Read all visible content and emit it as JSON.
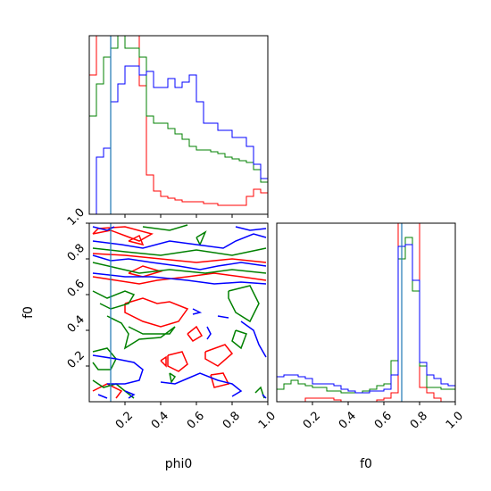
{
  "chart_data": {
    "type": "corner",
    "parameters": [
      "phi0",
      "f0"
    ],
    "xlabel": "phi0",
    "ylabel": "f0",
    "f0_xlabel": "f0",
    "xlim": [
      0,
      1
    ],
    "ylim": [
      0,
      1
    ],
    "ticks": [
      "0.2",
      "0.4",
      "0.6",
      "0.8",
      "1.0"
    ],
    "tick_values": [
      0.2,
      0.4,
      0.6,
      0.8,
      1.0
    ],
    "colors": {
      "red": "#ff0000",
      "green": "#008000",
      "blue": "#0000ff",
      "truth": "#1f77b4"
    },
    "truth": {
      "phi0": 0.12,
      "f0": 0.7
    },
    "histograms": {
      "bin_edges": [
        0,
        0.04,
        0.08,
        0.12,
        0.16,
        0.2,
        0.24,
        0.28,
        0.32,
        0.36,
        0.4,
        0.44,
        0.48,
        0.52,
        0.56,
        0.6,
        0.64,
        0.68,
        0.72,
        0.76,
        0.8,
        0.84,
        0.88,
        0.92,
        0.96,
        1.0
      ],
      "phi0": {
        "red": [
          0.78,
          1.3,
          1.35,
          1.35,
          1.3,
          1.2,
          1.0,
          0.72,
          0.22,
          0.13,
          0.1,
          0.09,
          0.08,
          0.07,
          0.07,
          0.07,
          0.06,
          0.06,
          0.05,
          0.05,
          0.05,
          0.05,
          0.1,
          0.14,
          0.12
        ],
        "green": [
          0.55,
          0.73,
          0.88,
          0.93,
          1.0,
          0.93,
          0.93,
          0.88,
          0.55,
          0.51,
          0.51,
          0.48,
          0.45,
          0.42,
          0.38,
          0.36,
          0.36,
          0.35,
          0.34,
          0.32,
          0.31,
          0.3,
          0.29,
          0.25,
          0.18
        ],
        "blue": [
          0.0,
          0.32,
          0.37,
          0.63,
          0.73,
          0.83,
          0.83,
          0.78,
          0.8,
          0.71,
          0.71,
          0.76,
          0.71,
          0.74,
          0.78,
          0.63,
          0.51,
          0.51,
          0.47,
          0.47,
          0.43,
          0.43,
          0.38,
          0.28,
          0.2
        ]
      },
      "f0": {
        "red": [
          0.0,
          0.0,
          0.0,
          0.0,
          0.02,
          0.02,
          0.02,
          0.02,
          0.01,
          0.0,
          0.0,
          0.0,
          0.0,
          0.0,
          0.01,
          0.02,
          0.05,
          1.0,
          1.02,
          1.02,
          0.08,
          0.05,
          0.02,
          0.0,
          0.0
        ],
        "green": [
          0.07,
          0.1,
          0.12,
          0.1,
          0.09,
          0.08,
          0.08,
          0.06,
          0.06,
          0.05,
          0.05,
          0.05,
          0.06,
          0.07,
          0.09,
          0.1,
          0.23,
          0.8,
          0.92,
          0.62,
          0.2,
          0.08,
          0.08,
          0.07,
          0.07
        ],
        "blue": [
          0.14,
          0.15,
          0.15,
          0.14,
          0.13,
          0.1,
          0.1,
          0.1,
          0.09,
          0.07,
          0.06,
          0.05,
          0.05,
          0.06,
          0.06,
          0.07,
          0.15,
          0.87,
          0.88,
          0.68,
          0.22,
          0.15,
          0.13,
          0.1,
          0.09
        ]
      }
    },
    "contours": {
      "red": [
        [
          [
            0.02,
            0.94
          ],
          [
            0.12,
            0.96
          ],
          [
            0.2,
            0.93
          ],
          [
            0.28,
            0.9
          ],
          [
            0.35,
            0.94
          ],
          [
            0.2,
            0.98
          ],
          [
            0.05,
            0.97
          ],
          [
            0.02,
            0.94
          ]
        ],
        [
          [
            0.02,
            0.83
          ],
          [
            0.2,
            0.82
          ],
          [
            0.4,
            0.8
          ],
          [
            0.6,
            0.78
          ],
          [
            0.8,
            0.8
          ],
          [
            0.99,
            0.78
          ]
        ],
        [
          [
            0.02,
            0.7
          ],
          [
            0.15,
            0.68
          ],
          [
            0.28,
            0.66
          ],
          [
            0.38,
            0.68
          ],
          [
            0.55,
            0.7
          ],
          [
            0.7,
            0.72
          ],
          [
            0.85,
            0.7
          ],
          [
            0.99,
            0.68
          ]
        ],
        [
          [
            0.22,
            0.72
          ],
          [
            0.3,
            0.76
          ],
          [
            0.4,
            0.73
          ],
          [
            0.3,
            0.7
          ],
          [
            0.22,
            0.72
          ]
        ],
        [
          [
            0.2,
            0.55
          ],
          [
            0.3,
            0.58
          ],
          [
            0.38,
            0.55
          ],
          [
            0.45,
            0.56
          ],
          [
            0.55,
            0.52
          ],
          [
            0.5,
            0.45
          ],
          [
            0.4,
            0.42
          ],
          [
            0.3,
            0.45
          ],
          [
            0.2,
            0.5
          ],
          [
            0.2,
            0.55
          ]
        ],
        [
          [
            0.55,
            0.38
          ],
          [
            0.6,
            0.42
          ],
          [
            0.63,
            0.37
          ],
          [
            0.58,
            0.34
          ],
          [
            0.55,
            0.38
          ]
        ],
        [
          [
            0.44,
            0.26
          ],
          [
            0.52,
            0.28
          ],
          [
            0.55,
            0.21
          ],
          [
            0.5,
            0.17
          ],
          [
            0.44,
            0.2
          ],
          [
            0.44,
            0.26
          ]
        ],
        [
          [
            0.65,
            0.28
          ],
          [
            0.76,
            0.32
          ],
          [
            0.8,
            0.27
          ],
          [
            0.72,
            0.2
          ],
          [
            0.65,
            0.24
          ],
          [
            0.65,
            0.28
          ]
        ],
        [
          [
            0.68,
            0.15
          ],
          [
            0.75,
            0.16
          ],
          [
            0.78,
            0.1
          ],
          [
            0.7,
            0.08
          ],
          [
            0.68,
            0.15
          ]
        ],
        [
          [
            0.4,
            0.23
          ],
          [
            0.43,
            0.25
          ],
          [
            0.43,
            0.2
          ],
          [
            0.4,
            0.23
          ]
        ],
        [
          [
            0.02,
            0.06
          ],
          [
            0.1,
            0.1
          ],
          [
            0.18,
            0.06
          ],
          [
            0.15,
            0.02
          ]
        ],
        [
          [
            0.22,
            0.9
          ],
          [
            0.28,
            0.93
          ],
          [
            0.3,
            0.88
          ],
          [
            0.22,
            0.9
          ]
        ]
      ],
      "green": [
        [
          [
            0.3,
            0.98
          ],
          [
            0.45,
            0.96
          ],
          [
            0.55,
            0.99
          ]
        ],
        [
          [
            0.6,
            0.92
          ],
          [
            0.65,
            0.95
          ],
          [
            0.62,
            0.88
          ],
          [
            0.6,
            0.92
          ]
        ],
        [
          [
            0.02,
            0.86
          ],
          [
            0.2,
            0.84
          ],
          [
            0.4,
            0.82
          ],
          [
            0.6,
            0.85
          ],
          [
            0.8,
            0.82
          ],
          [
            0.99,
            0.86
          ]
        ],
        [
          [
            0.02,
            0.78
          ],
          [
            0.15,
            0.75
          ],
          [
            0.28,
            0.72
          ],
          [
            0.45,
            0.74
          ],
          [
            0.55,
            0.73
          ],
          [
            0.65,
            0.72
          ],
          [
            0.8,
            0.74
          ],
          [
            0.99,
            0.72
          ]
        ],
        [
          [
            0.02,
            0.62
          ],
          [
            0.1,
            0.58
          ],
          [
            0.2,
            0.62
          ],
          [
            0.25,
            0.6
          ],
          [
            0.22,
            0.55
          ],
          [
            0.12,
            0.52
          ],
          [
            0.06,
            0.55
          ]
        ],
        [
          [
            0.1,
            0.48
          ],
          [
            0.18,
            0.44
          ],
          [
            0.22,
            0.38
          ],
          [
            0.2,
            0.3
          ],
          [
            0.28,
            0.35
          ],
          [
            0.4,
            0.36
          ],
          [
            0.48,
            0.42
          ],
          [
            0.45,
            0.38
          ],
          [
            0.3,
            0.38
          ],
          [
            0.22,
            0.42
          ]
        ],
        [
          [
            0.02,
            0.28
          ],
          [
            0.1,
            0.3
          ],
          [
            0.15,
            0.24
          ],
          [
            0.12,
            0.18
          ],
          [
            0.05,
            0.18
          ],
          [
            0.02,
            0.22
          ]
        ],
        [
          [
            0.78,
            0.62
          ],
          [
            0.9,
            0.65
          ],
          [
            0.95,
            0.55
          ],
          [
            0.9,
            0.45
          ],
          [
            0.82,
            0.5
          ],
          [
            0.78,
            0.58
          ],
          [
            0.78,
            0.62
          ]
        ],
        [
          [
            0.82,
            0.4
          ],
          [
            0.88,
            0.38
          ],
          [
            0.85,
            0.3
          ],
          [
            0.8,
            0.34
          ],
          [
            0.82,
            0.4
          ]
        ],
        [
          [
            0.02,
            0.12
          ],
          [
            0.08,
            0.08
          ],
          [
            0.15,
            0.1
          ],
          [
            0.2,
            0.06
          ],
          [
            0.25,
            0.02
          ]
        ],
        [
          [
            0.45,
            0.16
          ],
          [
            0.48,
            0.14
          ],
          [
            0.46,
            0.11
          ],
          [
            0.45,
            0.16
          ]
        ],
        [
          [
            0.93,
            0.05
          ],
          [
            0.96,
            0.08
          ],
          [
            0.98,
            0.02
          ]
        ]
      ],
      "blue": [
        [
          [
            0.02,
            0.98
          ],
          [
            0.1,
            0.96
          ],
          [
            0.14,
            0.98
          ]
        ],
        [
          [
            0.82,
            0.98
          ],
          [
            0.9,
            0.96
          ],
          [
            0.99,
            0.97
          ]
        ],
        [
          [
            0.02,
            0.9
          ],
          [
            0.18,
            0.88
          ],
          [
            0.3,
            0.86
          ],
          [
            0.45,
            0.9
          ],
          [
            0.6,
            0.88
          ],
          [
            0.75,
            0.86
          ],
          [
            0.82,
            0.9
          ],
          [
            0.92,
            0.94
          ],
          [
            0.99,
            0.92
          ]
        ],
        [
          [
            0.02,
            0.82
          ],
          [
            0.12,
            0.79
          ],
          [
            0.22,
            0.8
          ],
          [
            0.35,
            0.78
          ],
          [
            0.5,
            0.76
          ],
          [
            0.62,
            0.74
          ],
          [
            0.72,
            0.76
          ],
          [
            0.85,
            0.78
          ],
          [
            0.99,
            0.76
          ]
        ],
        [
          [
            0.02,
            0.72
          ],
          [
            0.2,
            0.7
          ],
          [
            0.35,
            0.7
          ],
          [
            0.55,
            0.68
          ],
          [
            0.7,
            0.66
          ],
          [
            0.85,
            0.67
          ],
          [
            0.99,
            0.66
          ]
        ],
        [
          [
            0.58,
            0.52
          ],
          [
            0.62,
            0.5
          ],
          [
            0.58,
            0.49
          ]
        ],
        [
          [
            0.72,
            0.48
          ],
          [
            0.78,
            0.47
          ]
        ],
        [
          [
            0.66,
            0.42
          ],
          [
            0.68,
            0.38
          ],
          [
            0.66,
            0.35
          ]
        ],
        [
          [
            0.85,
            0.45
          ],
          [
            0.92,
            0.4
          ],
          [
            0.95,
            0.32
          ],
          [
            0.99,
            0.25
          ]
        ],
        [
          [
            0.02,
            0.26
          ],
          [
            0.15,
            0.24
          ],
          [
            0.25,
            0.22
          ],
          [
            0.3,
            0.18
          ],
          [
            0.28,
            0.12
          ],
          [
            0.2,
            0.1
          ],
          [
            0.1,
            0.1
          ]
        ],
        [
          [
            0.4,
            0.11
          ],
          [
            0.48,
            0.1
          ],
          [
            0.55,
            0.13
          ],
          [
            0.62,
            0.16
          ],
          [
            0.72,
            0.12
          ],
          [
            0.8,
            0.1
          ],
          [
            0.85,
            0.06
          ],
          [
            0.8,
            0.03
          ]
        ],
        [
          [
            0.2,
            0.06
          ],
          [
            0.25,
            0.04
          ],
          [
            0.22,
            0.02
          ]
        ],
        [
          [
            0.05,
            0.04
          ],
          [
            0.1,
            0.02
          ]
        ],
        [
          [
            0.97,
            0.04
          ],
          [
            0.99,
            0.02
          ]
        ]
      ]
    }
  }
}
